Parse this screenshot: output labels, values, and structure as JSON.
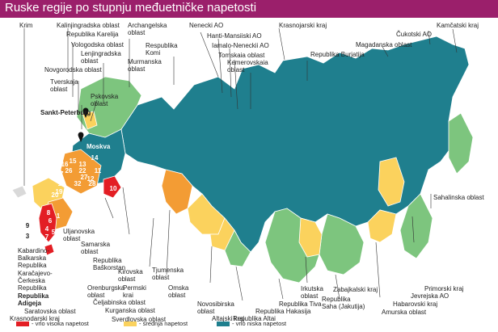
{
  "title": "Ruske regije po stupnju međuetničke napetosti",
  "colors": {
    "very_high": "#e31e24",
    "high": "#f39c34",
    "medium": "#fbd25d",
    "low": "#7dc57e",
    "very_low": "#1f7f8e"
  },
  "legend": {
    "very_high": "- vrlo visoka napetost",
    "medium": "- srednja napetost",
    "very_low": "- vrlo niska napetost"
  },
  "labels": {
    "krim": "Krim",
    "kalinjingradska": "Kalinjingradska oblast",
    "karelija": "Republika Karelija",
    "vologodska": "Vologodska oblast",
    "lenjingradska": "Lenjingradska\noblast",
    "novgorodska": "Novgorodska oblast",
    "tverskaja": "Tverskaja\noblast",
    "pskovska": "Pskovska\noblast",
    "sankt_peterburg": "Sankt-Peterburg",
    "moskva": "Moskva",
    "arhangelska": "Archangelska\noblast",
    "komi": "Respublika\nKomi",
    "murmanska": "Murmanska\noblast",
    "nenecki": "Nenecki AO",
    "hanti": "Hanti-Mansiiski AO",
    "jamalo": "Iamalo-Neneckii AO",
    "tomska": "Tomskaia oblast",
    "kemerovska": "Kemerovskaia\noblast",
    "krasnojarski": "Krasnojarski kraj",
    "burjatija": "Republika Burjatija",
    "cukotski": "Čukotski AO",
    "magadanska": "Magadanska oblast",
    "kamcatski": "Kamčatski kraj",
    "sahalinska": "Sahalinska oblast",
    "primorski": "Primorski kraj",
    "jevrejska": "Jevrejska AO",
    "habarovski": "Habarovski kraj",
    "amurska": "Amurska oblast",
    "zabajkalski": "Zabajkalski kraj",
    "saha": "Republika\nSaha (Jakutija)",
    "irkutska": "Irkutska\noblast",
    "tiva": "Republika Tiva",
    "hakasija": "Republika Hakasija",
    "altaj_rep": "Republika Altai",
    "altajski": "Altajski kraj",
    "novosibirska": "Novosibirska\noblast",
    "omska": "Omska\noblast",
    "tjumenska": "Tjumenska\noblast",
    "sverdlovska": "Sverdlovska oblast",
    "kurganska": "Kurganska oblast",
    "celjabinska": "Čeljabinska oblast",
    "orenburgska": "Orenburgska\noblast",
    "permski": "Permski\nkrai",
    "kirovska": "Kirovska\noblast",
    "baskorstan": "Republika\nBaškorstan",
    "samarska": "Samarska\noblast",
    "uljanovska": "Uljanovska\noblast",
    "kabardino": "Kabardino-\nBalkarska\nRepublika",
    "karacajevo": "Karačajevo-\nČerkeska\nRepublika",
    "adigeja": "Republika\nAdigeja",
    "saratovska": "Saratovska oblast",
    "krasnodarski": "Krasnodarski kraj"
  },
  "region_numbers": [
    "16",
    "17",
    "18",
    "19",
    "15",
    "13",
    "14",
    "11",
    "12",
    "22",
    "26",
    "27",
    "28",
    "32",
    "10",
    "24",
    "20",
    "8",
    "6",
    "4",
    "5",
    "1",
    "7",
    "9",
    "3"
  ]
}
